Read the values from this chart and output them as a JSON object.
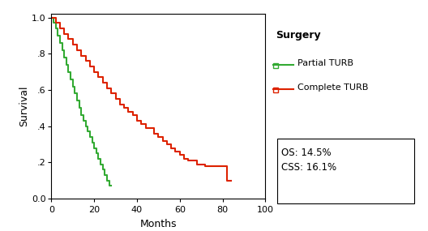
{
  "xlabel": "Months",
  "ylabel": "Survival",
  "xlim": [
    0,
    100
  ],
  "ylim": [
    0.0,
    1.02
  ],
  "xticks": [
    0,
    20,
    40,
    60,
    80,
    100
  ],
  "yticks": [
    0.0,
    0.2,
    0.4,
    0.6,
    0.8,
    1.0
  ],
  "ytick_labels": [
    "0.0",
    ".2",
    ".4",
    ".6",
    ".8",
    "1.0"
  ],
  "partial_color": "#33aa33",
  "complete_color": "#dd2200",
  "legend_title": "Surgery",
  "label_partial": "Partial TURB",
  "label_complete": "Complete TURB",
  "annotation_text": "OS: 14.5%\nCSS: 16.1%",
  "partial_x": [
    0,
    1,
    2,
    3,
    4,
    5,
    6,
    7,
    8,
    9,
    10,
    11,
    12,
    13,
    14,
    15,
    16,
    17,
    18,
    19,
    20,
    21,
    22,
    23,
    24,
    25,
    26,
    27,
    28
  ],
  "partial_y": [
    1.0,
    0.97,
    0.94,
    0.9,
    0.86,
    0.82,
    0.78,
    0.74,
    0.7,
    0.66,
    0.62,
    0.58,
    0.54,
    0.5,
    0.46,
    0.43,
    0.4,
    0.37,
    0.34,
    0.31,
    0.28,
    0.25,
    0.22,
    0.19,
    0.16,
    0.13,
    0.1,
    0.07,
    0.07
  ],
  "complete_x": [
    0,
    2,
    4,
    6,
    8,
    10,
    12,
    14,
    16,
    18,
    20,
    22,
    24,
    26,
    28,
    30,
    32,
    34,
    36,
    38,
    40,
    42,
    44,
    48,
    50,
    52,
    54,
    56,
    58,
    60,
    62,
    64,
    68,
    72,
    74,
    76,
    78,
    80,
    82,
    84
  ],
  "complete_y": [
    1.0,
    0.97,
    0.94,
    0.91,
    0.88,
    0.85,
    0.82,
    0.79,
    0.76,
    0.73,
    0.7,
    0.67,
    0.64,
    0.61,
    0.58,
    0.55,
    0.52,
    0.5,
    0.48,
    0.46,
    0.43,
    0.41,
    0.39,
    0.36,
    0.34,
    0.32,
    0.3,
    0.28,
    0.26,
    0.24,
    0.22,
    0.21,
    0.19,
    0.18,
    0.18,
    0.18,
    0.18,
    0.18,
    0.1,
    0.1
  ]
}
